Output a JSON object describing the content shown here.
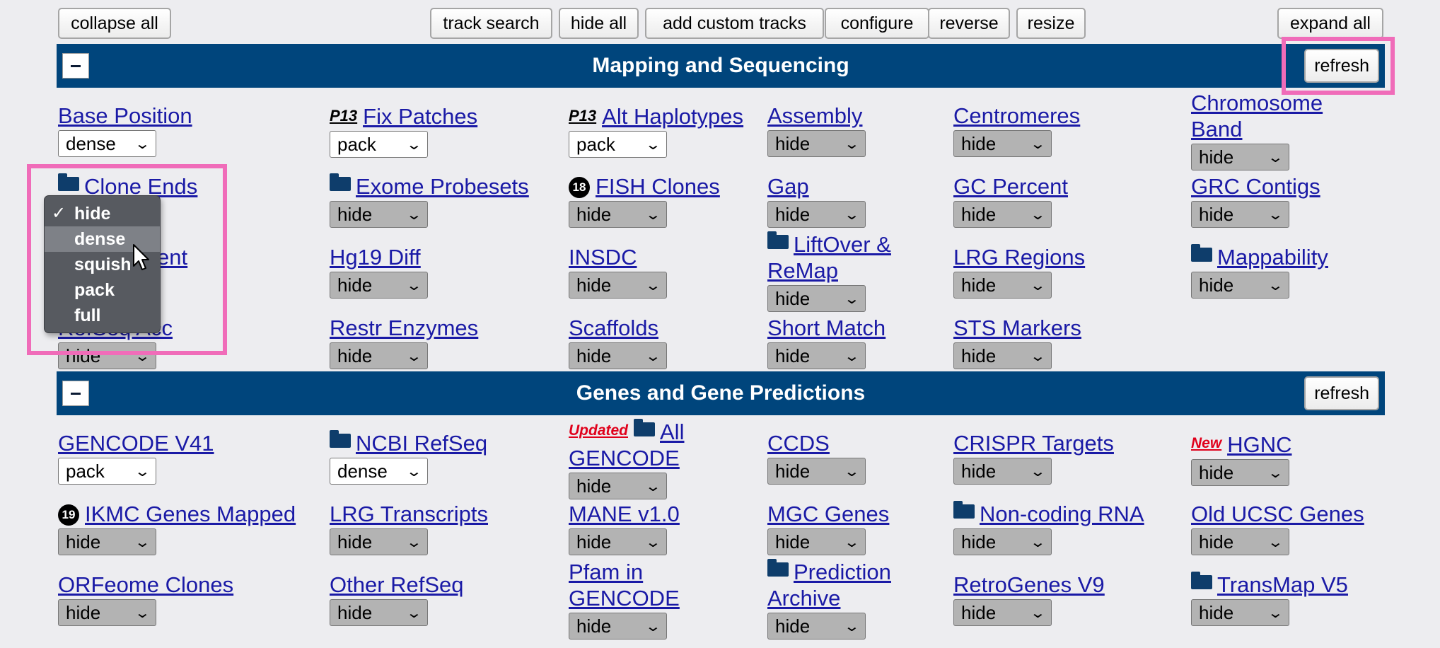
{
  "toolbar": {
    "collapse_all": "collapse all",
    "track_search": "track search",
    "hide_all": "hide all",
    "add_custom_tracks": "add custom tracks",
    "configure": "configure",
    "reverse": "reverse",
    "resize": "resize",
    "expand_all": "expand all"
  },
  "sections": [
    {
      "title": "Mapping and Sequencing",
      "refresh": "refresh",
      "tracks": [
        {
          "label": "Base Position",
          "value": "dense"
        },
        {
          "label": "Fix Patches",
          "badge": "P13",
          "value": "pack"
        },
        {
          "label": "Alt Haplotypes",
          "badge": "P13",
          "value": "pack"
        },
        {
          "label": "Assembly",
          "value": "hide"
        },
        {
          "label": "Centromeres",
          "value": "hide"
        },
        {
          "label": "Chromosome Band",
          "value": "hide"
        },
        {
          "label": "Clone Ends",
          "value": "hide"
        },
        {
          "label": "Exome Probesets",
          "value": "hide"
        },
        {
          "label": "FISH Clones",
          "badge": "18",
          "value": "hide"
        },
        {
          "label": "Gap",
          "value": "hide"
        },
        {
          "label": "GC Percent",
          "value": "hide"
        },
        {
          "label": "GRC Contigs",
          "value": "hide"
        },
        {
          "label": "ent",
          "value": "hide"
        },
        {
          "label": "Hg19 Diff",
          "value": "hide"
        },
        {
          "label": "INSDC",
          "value": "hide"
        },
        {
          "label": "LiftOver & ReMap",
          "value": "hide"
        },
        {
          "label": "LRG Regions",
          "value": "hide"
        },
        {
          "label": "Mappability",
          "value": "hide"
        },
        {
          "label": "RefSeq Acc",
          "value": "hide"
        },
        {
          "label": "Restr Enzymes",
          "value": "hide"
        },
        {
          "label": "Scaffolds",
          "value": "hide"
        },
        {
          "label": "Short Match",
          "value": "hide"
        },
        {
          "label": "STS Markers",
          "value": "hide"
        }
      ]
    },
    {
      "title": "Genes and Gene Predictions",
      "refresh": "refresh",
      "tracks": [
        {
          "label": "GENCODE V41",
          "value": "pack"
        },
        {
          "label": "NCBI RefSeq",
          "value": "dense"
        },
        {
          "label": "All GENCODE",
          "badge": "Updated",
          "value": "hide"
        },
        {
          "label": "CCDS",
          "value": "hide"
        },
        {
          "label": "CRISPR Targets",
          "value": "hide"
        },
        {
          "label": "HGNC",
          "badge": "New",
          "value": "hide"
        },
        {
          "label": "IKMC Genes Mapped",
          "badge": "19",
          "value": "hide"
        },
        {
          "label": "LRG Transcripts",
          "value": "hide"
        },
        {
          "label": "MANE v1.0",
          "value": "hide"
        },
        {
          "label": "MGC Genes",
          "value": "hide"
        },
        {
          "label": "Non-coding RNA",
          "value": "hide"
        },
        {
          "label": "Old UCSC Genes",
          "value": "hide"
        },
        {
          "label": "ORFeome Clones",
          "value": "hide"
        },
        {
          "label": "Other RefSeq",
          "value": "hide"
        },
        {
          "label": "Pfam in GENCODE",
          "value": "hide"
        },
        {
          "label": "Prediction Archive",
          "value": "hide"
        },
        {
          "label": "RetroGenes V9",
          "value": "hide"
        },
        {
          "label": "TransMap V5",
          "value": "hide"
        }
      ]
    }
  ],
  "dropdown": {
    "options": [
      "hide",
      "dense",
      "squish",
      "pack",
      "full"
    ],
    "selected": "hide",
    "hovered": "dense",
    "check_glyph": "✓"
  },
  "colors": {
    "band": "#00457c",
    "link": "#1a1aa6",
    "highlight": "#f06cb9",
    "badge_red": "#e0001b"
  }
}
